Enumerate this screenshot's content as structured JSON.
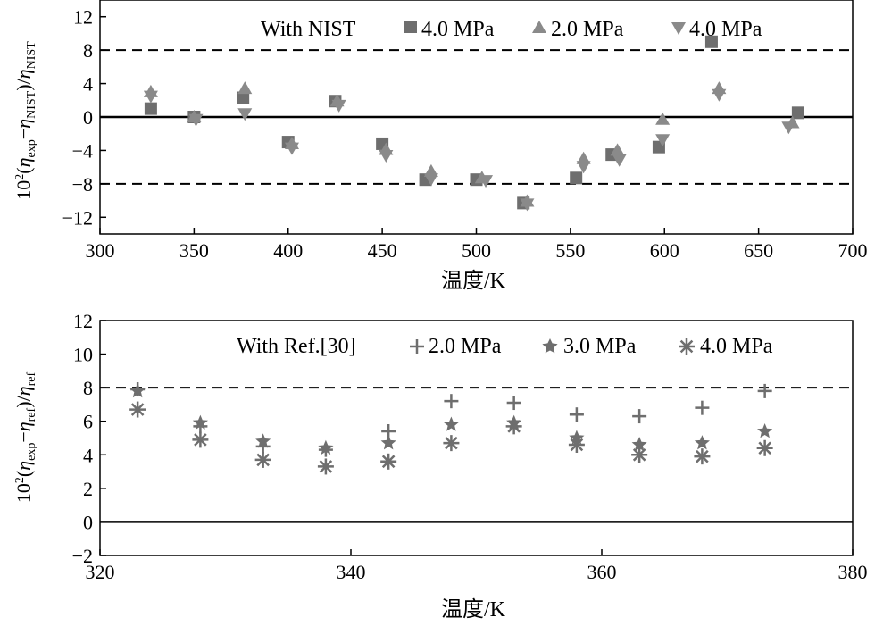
{
  "colors": {
    "marker": "#6e6e6e",
    "marker_light": "#8a8a8a",
    "axis": "#000000",
    "background": "#ffffff"
  },
  "chart_data": [
    {
      "type": "scatter",
      "xlabel": "温度/K",
      "ylabel": "10²(η_exp − η_NIST)/η_NIST",
      "xlim": [
        300,
        700
      ],
      "ylim": [
        -14,
        14
      ],
      "xticks": [
        300,
        350,
        400,
        450,
        500,
        550,
        600,
        650,
        700
      ],
      "yticks": [
        -12,
        -8,
        -4,
        0,
        4,
        8,
        12
      ],
      "reference_lines": [
        {
          "y": 0,
          "style": "solid"
        },
        {
          "y": 8,
          "style": "dashed"
        },
        {
          "y": -8,
          "style": "dashed"
        }
      ],
      "legend": {
        "title": "With NIST",
        "placement": "top-right"
      },
      "series": [
        {
          "name": "4.0 MPa",
          "marker": "square",
          "x": [
            327,
            350,
            376,
            400,
            425,
            450,
            473,
            500,
            525,
            553,
            572,
            597,
            625,
            671
          ],
          "y": [
            1,
            0,
            2.3,
            -3,
            1.9,
            -3.2,
            -7.5,
            -7.5,
            -10.3,
            -7.3,
            -4.5,
            -3.6,
            9,
            0.5
          ]
        },
        {
          "name": "2.0 MPa",
          "marker": "triangle-up",
          "x": [
            327,
            350,
            377,
            402,
            426,
            452,
            476,
            503,
            527,
            557,
            575,
            599,
            629,
            668
          ],
          "y": [
            3,
            0,
            3.4,
            -3.2,
            1.9,
            -3.9,
            -6.5,
            -7.3,
            -10.1,
            -5,
            -4,
            -0.3,
            3.4,
            -0.7
          ]
        },
        {
          "name": "4.0 MPa",
          "marker": "triangle-down",
          "x": [
            327,
            351,
            377,
            402,
            427,
            452,
            476,
            505,
            527,
            557,
            576,
            599,
            629,
            666
          ],
          "y": [
            2.5,
            -0.3,
            0.4,
            -3.7,
            1.4,
            -4.6,
            -7.4,
            -7.6,
            -10.4,
            -5.9,
            -5.1,
            -2.7,
            2.7,
            -1.2
          ]
        }
      ]
    },
    {
      "type": "scatter",
      "xlabel": "温度/K",
      "ylabel": "10²(η_exp − η_ref)/η_ref",
      "xlim": [
        320,
        380
      ],
      "ylim": [
        -2,
        12
      ],
      "xticks": [
        320,
        340,
        360,
        380
      ],
      "yticks": [
        -2,
        0,
        2,
        4,
        6,
        8,
        10,
        12
      ],
      "reference_lines": [
        {
          "y": 0,
          "style": "solid"
        },
        {
          "y": 8,
          "style": "dashed"
        }
      ],
      "legend": {
        "title": "With Ref.[30]",
        "placement": "top-right"
      },
      "series": [
        {
          "name": "2.0 MPa",
          "marker": "plus",
          "x": [
            323,
            328,
            333,
            338,
            343,
            348,
            353,
            358,
            363,
            368,
            373
          ],
          "y": [
            7.9,
            5.7,
            4.5,
            4.3,
            5.4,
            7.2,
            7.1,
            6.4,
            6.3,
            6.8,
            7.8
          ]
        },
        {
          "name": "3.0 MPa",
          "marker": "star",
          "x": [
            323,
            328,
            333,
            338,
            343,
            348,
            353,
            358,
            363,
            368,
            373
          ],
          "y": [
            7.8,
            5.9,
            4.8,
            4.4,
            4.7,
            5.8,
            5.9,
            5,
            4.6,
            4.7,
            5.4
          ]
        },
        {
          "name": "4.0 MPa",
          "marker": "asterisk",
          "x": [
            323,
            328,
            333,
            338,
            343,
            348,
            353,
            358,
            363,
            368,
            373
          ],
          "y": [
            6.7,
            4.9,
            3.7,
            3.3,
            3.6,
            4.7,
            5.7,
            4.6,
            4,
            3.9,
            4.4
          ]
        }
      ]
    }
  ],
  "labels": {
    "top": {
      "legend_title": "With NIST",
      "legend_1": "4.0 MPa",
      "legend_2": "2.0 MPa",
      "legend_3": "4.0 MPa",
      "xlabel": "温度/K",
      "ylabel_prefix": "10",
      "ylabel_sup": "2",
      "ylabel_open": "(",
      "ylabel_eta": "η",
      "ylabel_sub1": "exp",
      "ylabel_minus": "−",
      "ylabel_sub2": "NIST",
      "ylabel_close": ")/",
      "ylabel_sub3": "NIST"
    },
    "bottom": {
      "legend_title": "With Ref.[30]",
      "legend_1": "2.0 MPa",
      "legend_2": "3.0 MPa",
      "legend_3": "4.0 MPa",
      "xlabel": "温度/K",
      "ylabel_prefix": "10",
      "ylabel_sup": "2",
      "ylabel_open": "(",
      "ylabel_eta": "η",
      "ylabel_sub1": "exp",
      "ylabel_minus": "−",
      "ylabel_sub2": "ref",
      "ylabel_close": ")/",
      "ylabel_sub3": "ref"
    }
  }
}
